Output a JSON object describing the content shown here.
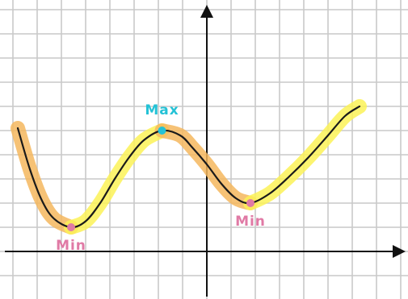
{
  "chart_data": {
    "type": "line",
    "title": "",
    "xlabel": "",
    "ylabel": "",
    "grid": true,
    "xlim": [
      -8.5,
      8.25
    ],
    "ylim": [
      -1.1,
      10
    ],
    "series": [
      {
        "values_x": [
          -7.8,
          -7.3,
          -6.8,
          -6.3,
          -5.6,
          -5.0,
          -4.4,
          -3.8,
          -3.2,
          -2.6,
          -1.85,
          -1.1,
          -0.6,
          0.0,
          0.6,
          1.2,
          1.8,
          2.6,
          3.4,
          4.2,
          5.0,
          5.7,
          6.3
        ],
        "values_y": [
          5.1,
          3.4,
          2.1,
          1.35,
          1.0,
          1.25,
          2.0,
          3.0,
          3.9,
          4.6,
          5.0,
          4.8,
          4.3,
          3.6,
          2.8,
          2.2,
          2.0,
          2.4,
          3.1,
          3.9,
          4.8,
          5.6,
          6.0
        ],
        "highlight_colors": [
          "#f5b75e",
          "#fbf257"
        ],
        "line_color": "#1a1a1a"
      }
    ],
    "points": [
      {
        "label": "Min",
        "x": -5.6,
        "y": 1.0,
        "color": "#e07aa5",
        "label_side": "below"
      },
      {
        "label": "Max",
        "x": -1.85,
        "y": 5.0,
        "color": "#24c2d6",
        "label_side": "above"
      },
      {
        "label": "Min",
        "x": 1.8,
        "y": 2.0,
        "color": "#e07aa5",
        "label_side": "below"
      }
    ]
  }
}
